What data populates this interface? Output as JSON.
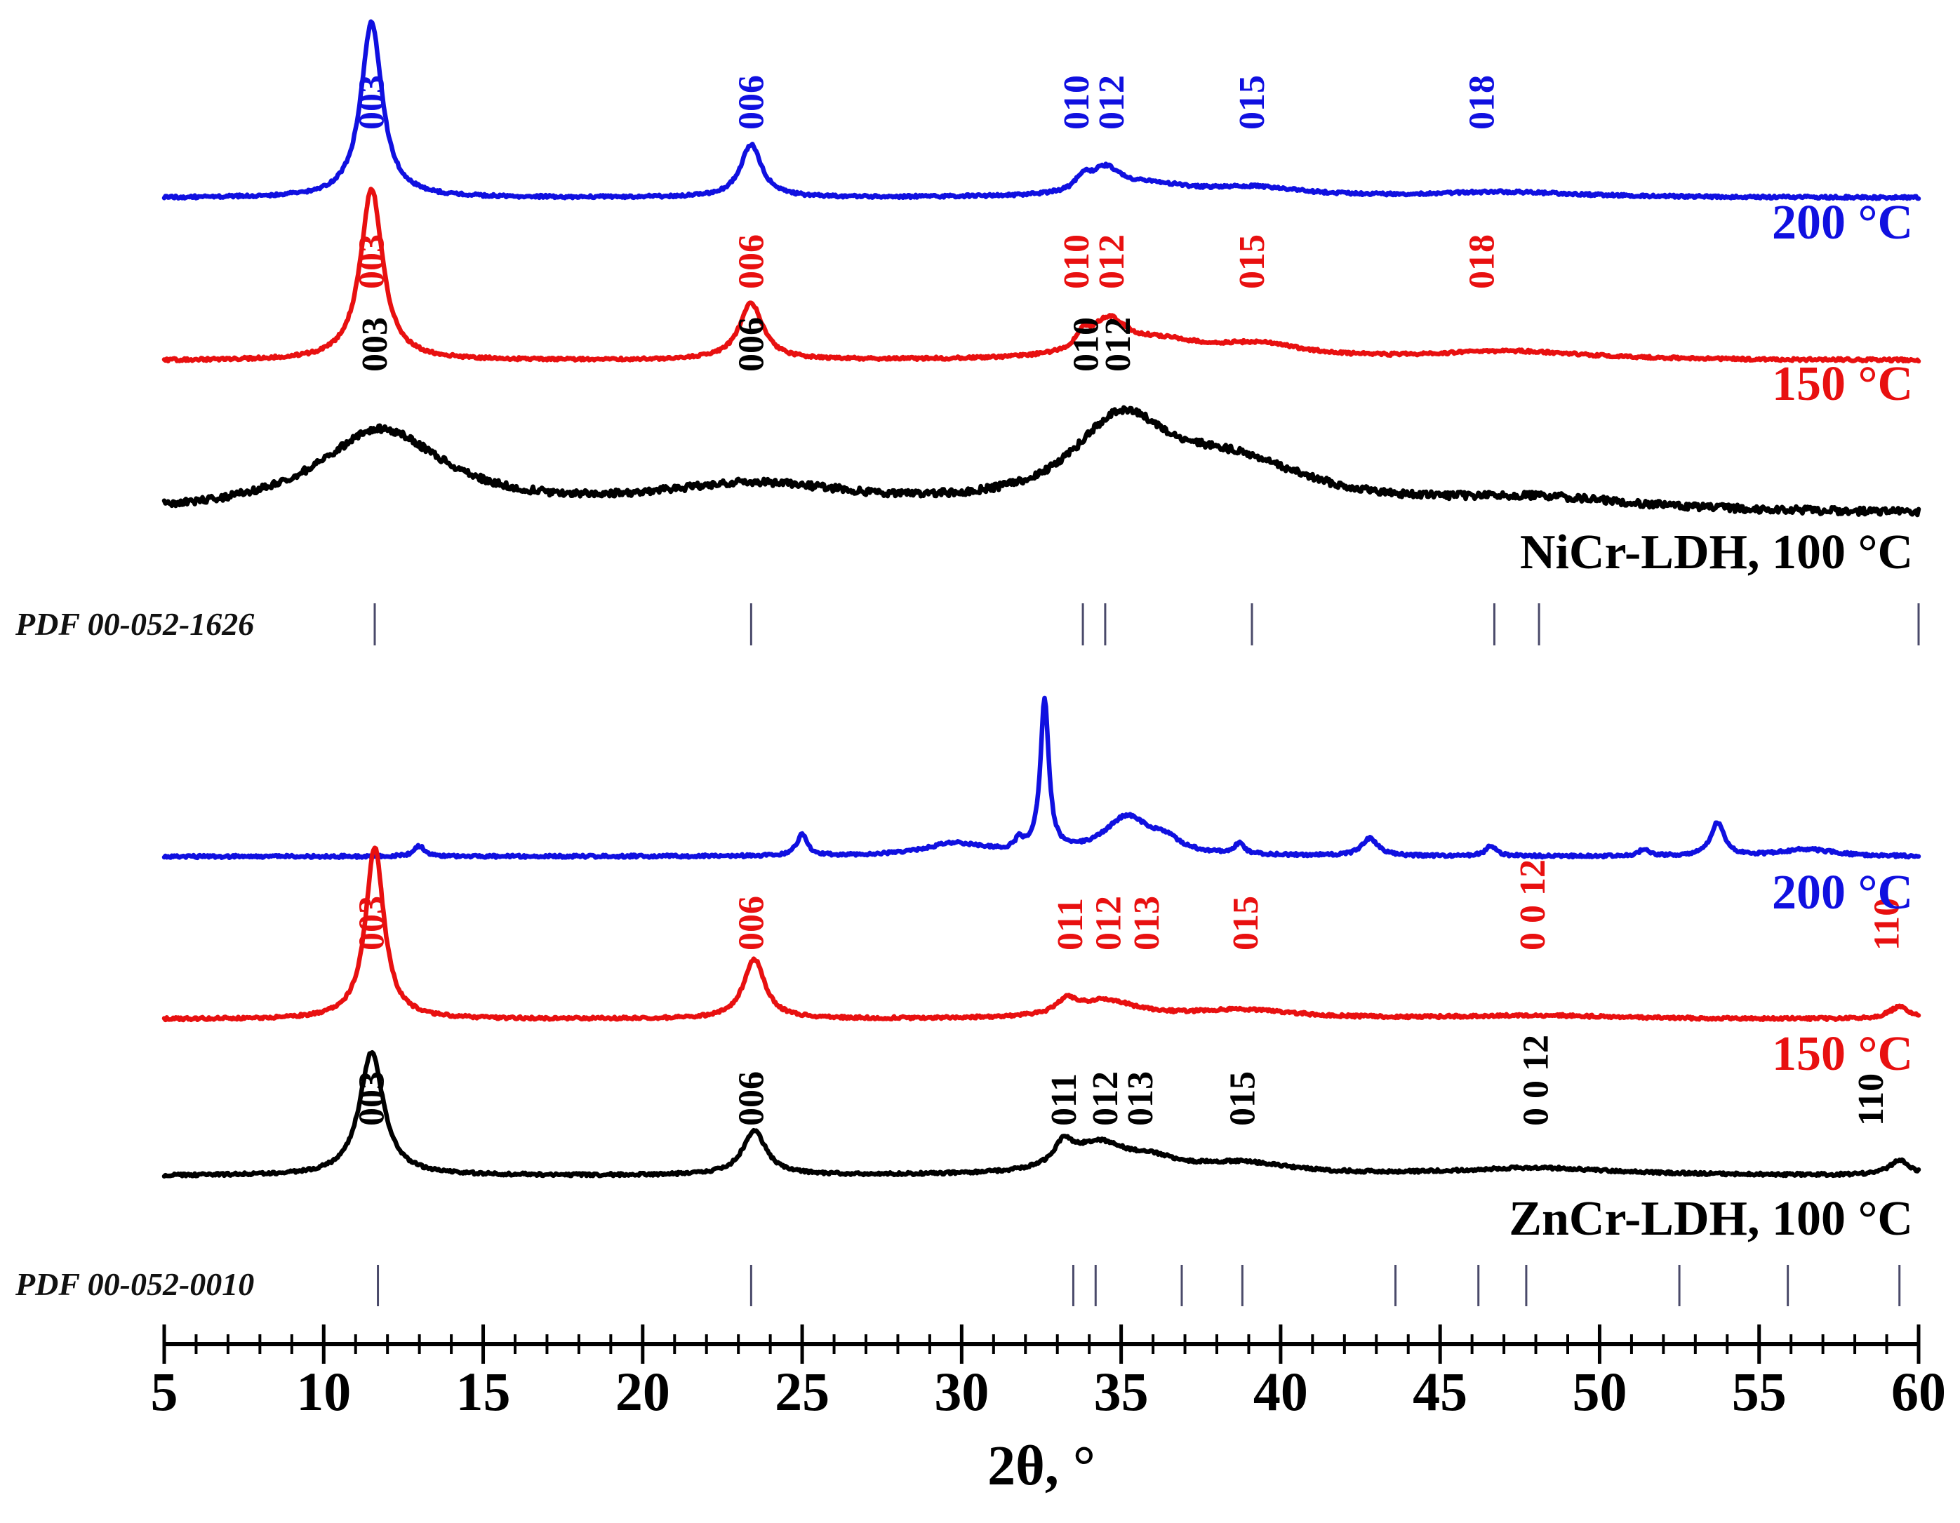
{
  "chart_data": {
    "type": "line",
    "title": "",
    "xlabel": "2θ, °",
    "ylabel": "",
    "xlim": [
      5,
      60
    ],
    "x_ticks": [
      "5",
      "10",
      "15",
      "20",
      "25",
      "30",
      "35",
      "40",
      "45",
      "50",
      "55",
      "60"
    ],
    "grid": false,
    "colors": {
      "t200": "#1010e0",
      "t150": "#e81010",
      "t100": "#000000"
    },
    "panels": [
      {
        "name": "NiCr",
        "reference": {
          "label": "PDF 00-052-1626",
          "lines": [
            11.6,
            23.4,
            33.8,
            34.5,
            39.1,
            46.7,
            48.1,
            60.0
          ]
        },
        "series": [
          {
            "name": "200 °C",
            "color_key": "t200",
            "label": "200 °C",
            "peaks": [
              {
                "center": 11.5,
                "height": 1.0,
                "width": 0.4
              },
              {
                "center": 23.4,
                "height": 0.3,
                "width": 0.4
              },
              {
                "center": 33.8,
                "height": 0.07,
                "width": 0.25
              },
              {
                "center": 34.5,
                "height": 0.14,
                "width": 0.6
              },
              {
                "center": 36.0,
                "height": 0.06,
                "width": 1.5
              },
              {
                "center": 39.2,
                "height": 0.05,
                "width": 1.8
              },
              {
                "center": 47.0,
                "height": 0.03,
                "width": 3.0
              }
            ],
            "hkl": [
              {
                "x": 11.5,
                "text": "003"
              },
              {
                "x": 23.4,
                "text": "006"
              },
              {
                "x": 33.6,
                "text": "010"
              },
              {
                "x": 34.7,
                "text": "012"
              },
              {
                "x": 39.1,
                "text": "015"
              },
              {
                "x": 46.3,
                "text": "018"
              }
            ]
          },
          {
            "name": "150 °C",
            "color_key": "t150",
            "label": "150 °C",
            "peaks": [
              {
                "center": 11.5,
                "height": 1.0,
                "width": 0.42
              },
              {
                "center": 23.4,
                "height": 0.33,
                "width": 0.45
              },
              {
                "center": 33.8,
                "height": 0.08,
                "width": 0.25
              },
              {
                "center": 34.6,
                "height": 0.2,
                "width": 0.7
              },
              {
                "center": 36.3,
                "height": 0.09,
                "width": 1.5
              },
              {
                "center": 39.3,
                "height": 0.08,
                "width": 1.8
              },
              {
                "center": 47.2,
                "height": 0.05,
                "width": 3.0
              }
            ],
            "hkl": [
              {
                "x": 11.5,
                "text": "003"
              },
              {
                "x": 23.4,
                "text": "006"
              },
              {
                "x": 33.6,
                "text": "010"
              },
              {
                "x": 34.7,
                "text": "012"
              },
              {
                "x": 39.1,
                "text": "015"
              },
              {
                "x": 46.3,
                "text": "018"
              }
            ]
          },
          {
            "name": "NiCr-LDH, 100 °C",
            "color_key": "t100",
            "label": "NiCr-LDH, 100 °C",
            "peaks": [
              {
                "center": 11.8,
                "height": 0.45,
                "width": 2.4
              },
              {
                "center": 23.5,
                "height": 0.14,
                "width": 4.0
              },
              {
                "center": 35.0,
                "height": 0.45,
                "width": 1.8
              },
              {
                "center": 38.5,
                "height": 0.24,
                "width": 3.0
              },
              {
                "center": 48.0,
                "height": 0.07,
                "width": 4.0
              }
            ],
            "hkl": [
              {
                "x": 11.6,
                "text": "003"
              },
              {
                "x": 23.4,
                "text": "006"
              },
              {
                "x": 33.9,
                "text": "010"
              },
              {
                "x": 34.9,
                "text": "012"
              }
            ]
          }
        ]
      },
      {
        "name": "ZnCr",
        "reference": {
          "label": "PDF 00-052-0010",
          "lines": [
            11.7,
            23.4,
            33.5,
            34.2,
            36.9,
            38.8,
            43.6,
            46.2,
            47.7,
            52.5,
            55.9,
            59.4
          ]
        },
        "series": [
          {
            "name": "200 °C",
            "color_key": "t200",
            "label": "200 °C",
            "peaks": [
              {
                "center": 13.0,
                "height": 0.06,
                "width": 0.2
              },
              {
                "center": 25.0,
                "height": 0.12,
                "width": 0.2
              },
              {
                "center": 29.8,
                "height": 0.07,
                "width": 1.2
              },
              {
                "center": 31.8,
                "height": 0.06,
                "width": 0.15
              },
              {
                "center": 32.6,
                "height": 0.86,
                "width": 0.16
              },
              {
                "center": 35.2,
                "height": 0.22,
                "width": 0.9
              },
              {
                "center": 36.4,
                "height": 0.06,
                "width": 0.5
              },
              {
                "center": 38.7,
                "height": 0.06,
                "width": 0.18
              },
              {
                "center": 42.8,
                "height": 0.1,
                "width": 0.3
              },
              {
                "center": 46.6,
                "height": 0.06,
                "width": 0.2
              },
              {
                "center": 51.4,
                "height": 0.04,
                "width": 0.2
              },
              {
                "center": 53.7,
                "height": 0.19,
                "width": 0.25
              },
              {
                "center": 56.5,
                "height": 0.04,
                "width": 1.0
              }
            ],
            "hkl": []
          },
          {
            "name": "150 °C",
            "color_key": "t150",
            "label": "150 °C",
            "peaks": [
              {
                "center": 11.6,
                "height": 1.0,
                "width": 0.35
              },
              {
                "center": 23.5,
                "height": 0.35,
                "width": 0.4
              },
              {
                "center": 33.3,
                "height": 0.08,
                "width": 0.35
              },
              {
                "center": 34.5,
                "height": 0.1,
                "width": 1.2
              },
              {
                "center": 38.8,
                "height": 0.05,
                "width": 2.0
              },
              {
                "center": 48.0,
                "height": 0.02,
                "width": 3.0
              },
              {
                "center": 59.4,
                "height": 0.07,
                "width": 0.4
              }
            ],
            "hkl": [
              {
                "x": 11.5,
                "text": "003"
              },
              {
                "x": 23.4,
                "text": "006"
              },
              {
                "x": 33.4,
                "text": "011"
              },
              {
                "x": 34.6,
                "text": "012"
              },
              {
                "x": 35.8,
                "text": "013"
              },
              {
                "x": 38.9,
                "text": "015"
              },
              {
                "x": 47.9,
                "text": "0 0 12"
              },
              {
                "x": 59.0,
                "text": "110"
              }
            ]
          },
          {
            "name": "ZnCr-LDH, 100 °C",
            "color_key": "t100",
            "label": "ZnCr-LDH, 100 °C",
            "peaks": [
              {
                "center": 11.5,
                "height": 0.68,
                "width": 0.45
              },
              {
                "center": 23.5,
                "height": 0.24,
                "width": 0.45
              },
              {
                "center": 33.2,
                "height": 0.12,
                "width": 0.35
              },
              {
                "center": 34.3,
                "height": 0.16,
                "width": 1.1
              },
              {
                "center": 36.0,
                "height": 0.06,
                "width": 1.0
              },
              {
                "center": 38.8,
                "height": 0.06,
                "width": 1.8
              },
              {
                "center": 48.0,
                "height": 0.04,
                "width": 3.0
              },
              {
                "center": 59.4,
                "height": 0.08,
                "width": 0.4
              }
            ],
            "hkl": [
              {
                "x": 11.5,
                "text": "003"
              },
              {
                "x": 23.4,
                "text": "006"
              },
              {
                "x": 33.2,
                "text": "011"
              },
              {
                "x": 34.5,
                "text": "012"
              },
              {
                "x": 35.6,
                "text": "013"
              },
              {
                "x": 38.8,
                "text": "015"
              },
              {
                "x": 48.0,
                "text": "0 0 12"
              },
              {
                "x": 58.5,
                "text": "110"
              }
            ]
          }
        ]
      }
    ]
  }
}
